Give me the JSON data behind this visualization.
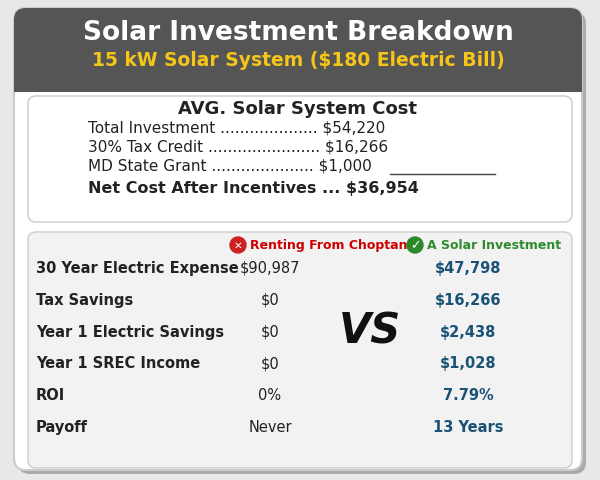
{
  "title_line1": "Solar Investment Breakdown",
  "title_line2": "15 kW Solar System ($180 Electric Bill)",
  "header_bg": "#555555",
  "header_text_color": "#ffffff",
  "header_subtitle_color": "#f5c518",
  "section1_title": "AVG. Solar System Cost",
  "cost_rows": [
    {
      "label": "Total Investment .................... $54,220",
      "bold": false
    },
    {
      "label": "30% Tax Credit ....................... $16,266",
      "bold": false
    },
    {
      "label": "MD State Grant ..................... $1,000",
      "bold": false,
      "underline": true
    },
    {
      "label": "Net Cost After Incentives ... $36,954",
      "bold": true
    }
  ],
  "col1_header": "Renting From Choptank",
  "col2_header": "A Solar Investment",
  "col1_header_color": "#cc0000",
  "col2_header_color": "#2e8b2e",
  "comparison_rows": [
    {
      "label": "30 Year Electric Expense",
      "col1": "$90,987",
      "col2": "$47,798"
    },
    {
      "label": "Tax Savings",
      "col1": "$0",
      "col2": "$16,266"
    },
    {
      "label": "Year 1 Electric Savings",
      "col1": "$0",
      "col2": "$2,438"
    },
    {
      "label": "Year 1 SREC Income",
      "col1": "$0",
      "col2": "$1,028"
    },
    {
      "label": "ROI",
      "col1": "0%",
      "col2": "7.79%"
    },
    {
      "label": "Payoff",
      "col1": "Never",
      "col2": "13 Years"
    }
  ],
  "col1_value_color": "#222222",
  "col2_value_color": "#1a5276",
  "vs_text": "VS",
  "outer_bg": "#e8e8e8",
  "card_bg": "#ffffff",
  "section2_bg": "#f0f0f0"
}
